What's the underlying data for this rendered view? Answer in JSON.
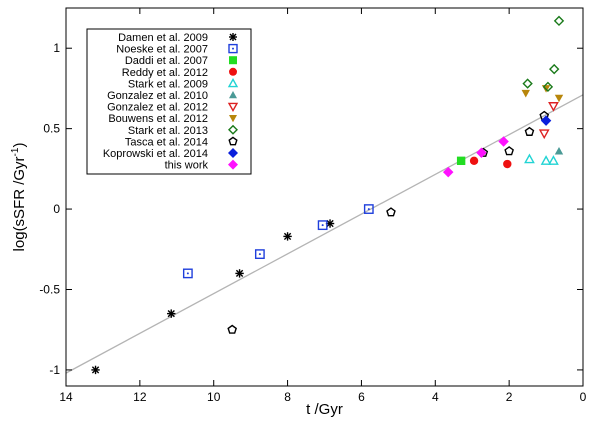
{
  "chart_data": {
    "type": "scatter",
    "xlabel": "t /Gyr",
    "ylabel_main": "log(sSFR /Gyr",
    "ylabel_sup": "-1",
    "ylabel_close": ")",
    "xlim": [
      14,
      0
    ],
    "ylim": [
      -1.1,
      1.25
    ],
    "xticks": [
      14,
      12,
      10,
      8,
      6,
      4,
      2,
      0
    ],
    "yticks": [
      -1,
      -0.5,
      0,
      0.5,
      1
    ],
    "xtick_labels": [
      "14",
      "12",
      "10",
      "8",
      "6",
      "4",
      "2",
      "0"
    ],
    "ytick_labels": [
      "-1",
      "-0.5",
      "0",
      "0.5",
      "1"
    ],
    "grid": false,
    "legend_position": "top-left",
    "fit_line": {
      "color": "#b4b4b4",
      "points": [
        [
          14,
          -1.02
        ],
        [
          0,
          0.71
        ]
      ]
    },
    "series": [
      {
        "name": "Damen et al. 2009",
        "marker": "asterisk",
        "color": "#000000",
        "points": [
          [
            13.2,
            -1.0
          ],
          [
            11.15,
            -0.65
          ],
          [
            9.3,
            -0.4
          ],
          [
            8.0,
            -0.17
          ],
          [
            6.85,
            -0.09
          ]
        ]
      },
      {
        "name": "Noeske et al. 2007",
        "marker": "dotted-square",
        "color": "#1f3fdc",
        "points": [
          [
            10.7,
            -0.4
          ],
          [
            8.75,
            -0.28
          ],
          [
            7.05,
            -0.1
          ],
          [
            5.8,
            0.0
          ]
        ]
      },
      {
        "name": "Daddi et al. 2007",
        "marker": "filled-square",
        "color": "#22dd22",
        "points": [
          [
            3.3,
            0.3
          ]
        ]
      },
      {
        "name": "Reddy et al. 2012",
        "marker": "filled-circle",
        "color": "#ee1111",
        "points": [
          [
            2.95,
            0.3
          ],
          [
            2.05,
            0.28
          ]
        ]
      },
      {
        "name": "Stark et al. 2009",
        "marker": "open-triangle",
        "color": "#22d4d4",
        "points": [
          [
            1.45,
            0.31
          ],
          [
            1.0,
            0.3
          ],
          [
            0.8,
            0.3
          ]
        ]
      },
      {
        "name": "Gonzalez et al. 2010",
        "marker": "filled-triangle",
        "color": "#4a9a96",
        "points": [
          [
            0.65,
            0.36
          ]
        ]
      },
      {
        "name": "Gonzalez et al. 2012",
        "marker": "open-triangle-down",
        "color": "#dd2222",
        "points": [
          [
            1.05,
            0.47
          ],
          [
            0.8,
            0.64
          ]
        ]
      },
      {
        "name": "Bouwens et al. 2012",
        "marker": "filled-triangle-down",
        "color": "#b8860b",
        "points": [
          [
            1.55,
            0.72
          ],
          [
            1.0,
            0.75
          ],
          [
            0.65,
            0.69
          ]
        ]
      },
      {
        "name": "Stark et al. 2013",
        "marker": "open-diamond",
        "color": "#1a7a1a",
        "points": [
          [
            1.5,
            0.78
          ],
          [
            0.95,
            0.76
          ],
          [
            0.78,
            0.87
          ],
          [
            0.65,
            1.17
          ]
        ]
      },
      {
        "name": "Tasca et al. 2014",
        "marker": "open-pentagon",
        "color": "#000000",
        "points": [
          [
            5.2,
            -0.02
          ],
          [
            9.5,
            -0.75
          ],
          [
            2.7,
            0.35
          ],
          [
            2.0,
            0.36
          ],
          [
            1.45,
            0.48
          ],
          [
            1.05,
            0.58
          ]
        ]
      },
      {
        "name": "Koprowski et al. 2014",
        "marker": "filled-diamond",
        "color": "#0a1fdc",
        "points": [
          [
            1.0,
            0.55
          ]
        ]
      },
      {
        "name": "this work",
        "marker": "filled-diamond",
        "color": "#ff11ff",
        "points": [
          [
            3.65,
            0.23
          ],
          [
            2.75,
            0.35
          ],
          [
            2.15,
            0.42
          ]
        ]
      }
    ]
  }
}
